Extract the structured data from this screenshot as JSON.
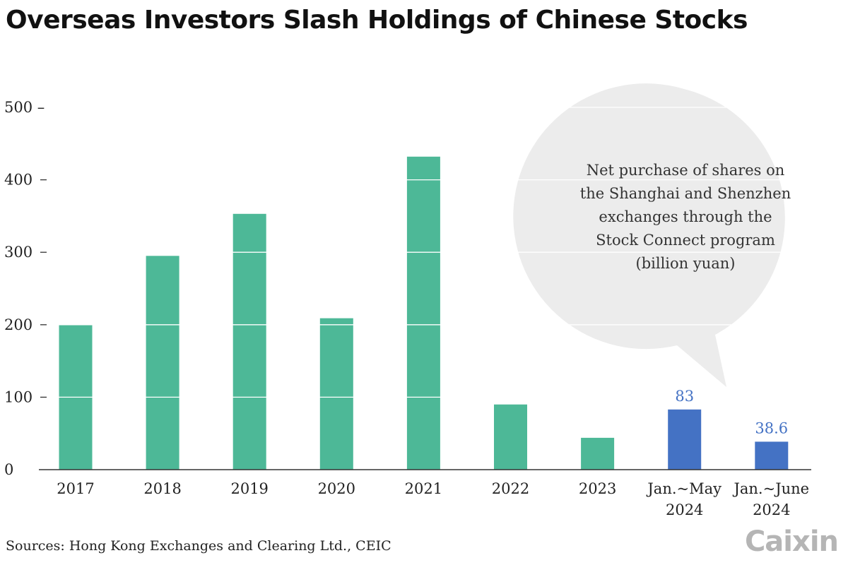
{
  "chart_data": {
    "type": "bar",
    "title": "Overseas Investors Slash Holdings of Chinese Stocks",
    "categories": [
      "2017",
      "2018",
      "2019",
      "2020",
      "2021",
      "2022",
      "2023",
      "Jan.~May 2024",
      "Jan.~June 2024"
    ],
    "category_lines": [
      [
        "2017"
      ],
      [
        "2018"
      ],
      [
        "2019"
      ],
      [
        "2020"
      ],
      [
        "2021"
      ],
      [
        "2022"
      ],
      [
        "2023"
      ],
      [
        "Jan.~May",
        "2024"
      ],
      [
        "Jan.~June",
        "2024"
      ]
    ],
    "values": [
      200,
      295,
      353,
      209,
      432,
      90,
      44,
      83,
      38.6
    ],
    "data_labels": [
      "",
      "",
      "",
      "",
      "",
      "",
      "",
      "83",
      "38.6"
    ],
    "highlight": [
      false,
      false,
      false,
      false,
      false,
      false,
      false,
      true,
      true
    ],
    "ylim": [
      0,
      500
    ],
    "yticks": [
      0,
      100,
      200,
      300,
      400,
      500
    ],
    "ytick_labels": [
      "0",
      "100",
      "200",
      "300",
      "400",
      "500 –"
    ],
    "xlabel": "",
    "ylabel": "",
    "grid": "white lines across bars",
    "annotation": [
      "Net purchase of shares on",
      "the Shanghai and Shenzhen",
      "exchanges through the",
      "Stock Connect program",
      "(billion yuan)"
    ],
    "source": "Sources: Hong Kong Exchanges and Clearing Ltd., CEIC",
    "colors": {
      "bar": "#4db897",
      "highlight": "#4472c4",
      "label": "#4472c4",
      "bubble": "#ececec"
    }
  },
  "brand": {
    "logo": "Caixin"
  }
}
